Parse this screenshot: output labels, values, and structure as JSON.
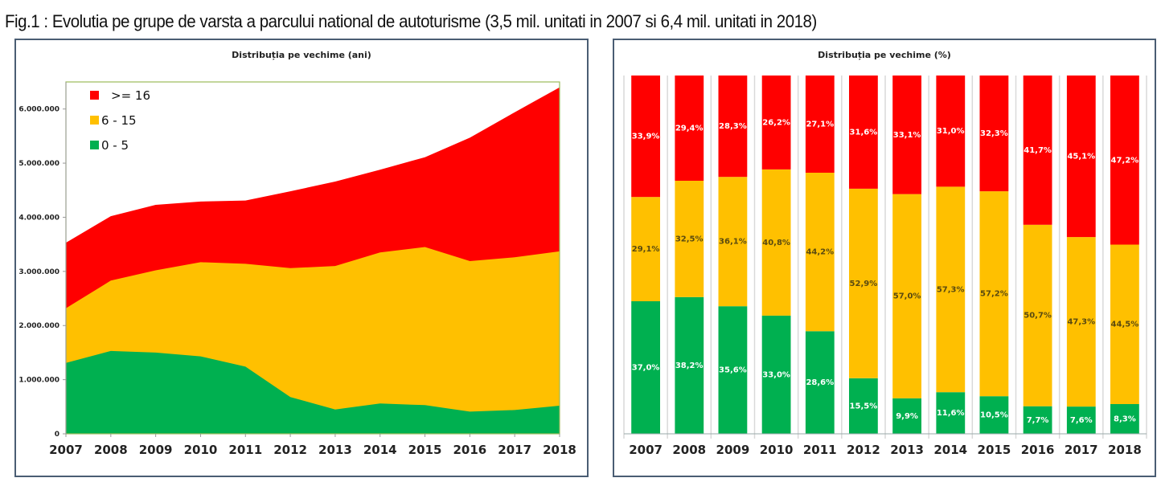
{
  "figure": {
    "title": "Fig.1 : Evolutia pe grupe de varsta a parcului national de autoturisme (3,5 mil. unitati in 2007 si  6,4 mil. unitati in 2018)"
  },
  "colors": {
    "old": "#ff0000",
    "mid": "#ffc000",
    "new": "#00b050",
    "plot_border": "#9bbb59",
    "panel_border": "#4a5d73"
  },
  "chart_data": [
    {
      "type": "area",
      "stacked": true,
      "title": "Distribuția pe vechime (ani)",
      "xlabel": "",
      "ylabel": "",
      "categories": [
        "2007",
        "2008",
        "2009",
        "2010",
        "2011",
        "2012",
        "2013",
        "2014",
        "2015",
        "2016",
        "2017",
        "2018"
      ],
      "ylim": [
        0,
        6500000
      ],
      "yticks": [
        0,
        1000000,
        2000000,
        3000000,
        4000000,
        5000000,
        6000000
      ],
      "ytick_labels": [
        "0",
        "1.000.000",
        "2.000.000",
        "3.000.000",
        "4.000.000",
        "5.000.000",
        "6.000.000"
      ],
      "legend_position": "top-left",
      "series": [
        {
          "name": "0 - 5",
          "color": "#00b050",
          "values": [
            1310000,
            1530000,
            1500000,
            1430000,
            1240000,
            680000,
            450000,
            560000,
            530000,
            410000,
            440000,
            520000
          ]
        },
        {
          "name": "6 - 15",
          "color": "#ffc000",
          "values": [
            1010000,
            1300000,
            1520000,
            1740000,
            1900000,
            2380000,
            2650000,
            2790000,
            2920000,
            2780000,
            2820000,
            2850000
          ]
        },
        {
          "name": ">= 16",
          "color": "#ff0000",
          "values": [
            1210000,
            1190000,
            1210000,
            1120000,
            1170000,
            1420000,
            1560000,
            1530000,
            1660000,
            2280000,
            2680000,
            3030000
          ]
        }
      ],
      "legend_order": [
        ">= 16",
        "6 - 15",
        "0 - 5"
      ]
    },
    {
      "type": "bar",
      "stacked": true,
      "percent": true,
      "title": "Distribuția pe vechime (%)",
      "xlabel": "",
      "ylabel": "",
      "categories": [
        "2007",
        "2008",
        "2009",
        "2010",
        "2011",
        "2012",
        "2013",
        "2014",
        "2015",
        "2016",
        "2017",
        "2018"
      ],
      "ylim": [
        0,
        100
      ],
      "series": [
        {
          "name": "0 - 5",
          "color": "#00b050",
          "values": [
            37.0,
            38.2,
            35.6,
            33.0,
            28.6,
            15.5,
            9.9,
            11.6,
            10.5,
            7.7,
            7.6,
            8.3
          ],
          "labels": [
            "37,0%",
            "38,2%",
            "35,6%",
            "33,0%",
            "28,6%",
            "15,5%",
            "9,9%",
            "11,6%",
            "10,5%",
            "7,7%",
            "7,6%",
            "8,3%"
          ]
        },
        {
          "name": "6 - 15",
          "color": "#ffc000",
          "values": [
            29.1,
            32.5,
            36.1,
            40.8,
            44.2,
            52.9,
            57.0,
            57.3,
            57.2,
            50.7,
            47.3,
            44.5
          ],
          "labels": [
            "29,1%",
            "32,5%",
            "36,1%",
            "40,8%",
            "44,2%",
            "52,9%",
            "57,0%",
            "57,3%",
            "57,2%",
            "50,7%",
            "47,3%",
            "44,5%"
          ]
        },
        {
          "name": ">= 16",
          "color": "#ff0000",
          "values": [
            33.9,
            29.4,
            28.3,
            26.2,
            27.1,
            31.6,
            33.1,
            31.0,
            32.3,
            41.7,
            45.1,
            47.2
          ],
          "labels": [
            "33,9%",
            "29,4%",
            "28,3%",
            "26,2%",
            "27,1%",
            "31,6%",
            "33,1%",
            "31,0%",
            "32,3%",
            "41,7%",
            "45,1%",
            "47,2%"
          ]
        }
      ]
    }
  ]
}
